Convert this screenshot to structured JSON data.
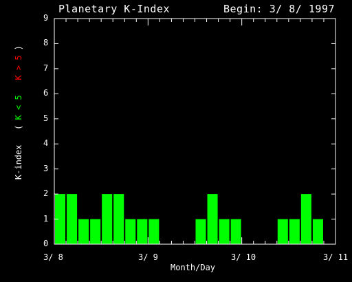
{
  "chart_data": {
    "type": "bar",
    "title": "Planetary K-Index",
    "subtitle": "Begin: 3/ 8/ 1997",
    "xlabel": "Month/Day",
    "ylabel_parts": [
      "K-index",
      "(",
      "K < 5",
      "K > 5",
      ")"
    ],
    "ylim": [
      0,
      9
    ],
    "yticks": [
      "0",
      "1",
      "2",
      "3",
      "4",
      "5",
      "6",
      "7",
      "8",
      "9"
    ],
    "xticks": [
      "3/ 8",
      "3/ 9",
      "3/ 10",
      "3/ 11"
    ],
    "values": [
      2,
      2,
      1,
      1,
      2,
      2,
      1,
      1,
      1,
      0,
      0,
      0,
      1,
      2,
      1,
      1,
      0,
      0,
      0,
      1,
      1,
      2,
      1,
      0
    ],
    "bar_color": "#00ff00",
    "high_color": "#ff0000"
  }
}
